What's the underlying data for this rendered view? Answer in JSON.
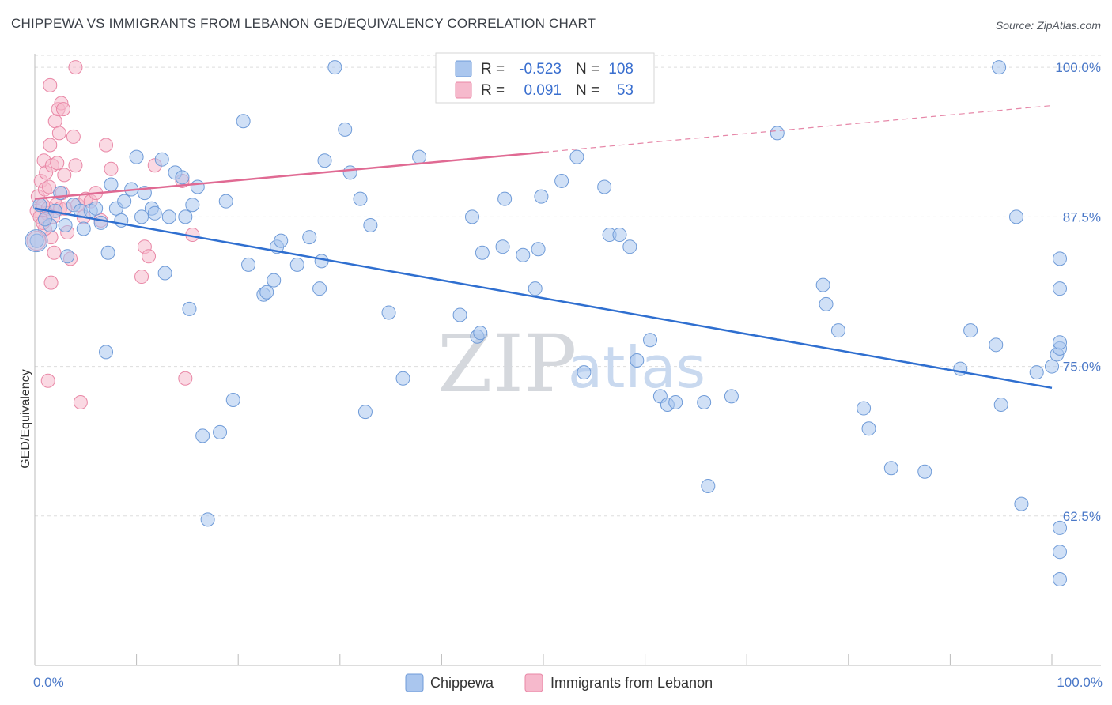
{
  "title": "CHIPPEWA VS IMMIGRANTS FROM LEBANON GED/EQUIVALENCY CORRELATION CHART",
  "source": "Source: ZipAtlas.com",
  "watermark": {
    "zip": "ZIP",
    "atlas": "atlas"
  },
  "colors": {
    "blue_fill": "#aac6ee",
    "blue_stroke": "#6f9bd8",
    "blue_line": "#2f6fd0",
    "pink_fill": "#f6b9cc",
    "pink_stroke": "#e987a6",
    "pink_line": "#e06a93",
    "grid": "#dddddd",
    "axis_text": "#4a78c8"
  },
  "legend": {
    "rows": [
      {
        "r_label": "R =",
        "r_value": "-0.523",
        "n_label": "N =",
        "n_value": "108"
      },
      {
        "r_label": "R =",
        "r_value": "0.091",
        "n_label": "N =",
        "n_value": "53"
      }
    ]
  },
  "chart_data": {
    "type": "scatter",
    "title": "CHIPPEWA VS IMMIGRANTS FROM LEBANON GED/EQUIVALENCY CORRELATION CHART",
    "xlabel": "",
    "ylabel": "GED/Equivalency",
    "xlim": [
      0,
      100
    ],
    "ylim": [
      50,
      101
    ],
    "x_tick_labels": [
      "0.0%",
      "100.0%"
    ],
    "y_ticks": [
      62.5,
      75.0,
      87.5,
      100.0
    ],
    "y_tick_labels": [
      "62.5%",
      "75.0%",
      "87.5%",
      "100.0%"
    ],
    "series": [
      {
        "name": "Chippewa",
        "color": "#aac6ee",
        "trend": {
          "x0": 0,
          "y0": 88.2,
          "x1": 100,
          "y1": 73.2,
          "dashed_from": null
        },
        "points": [
          [
            0.2,
            85.5
          ],
          [
            1.5,
            86.8
          ],
          [
            2.5,
            89.5
          ],
          [
            3.2,
            84.2
          ],
          [
            3.8,
            88.5
          ],
          [
            4.5,
            88.0
          ],
          [
            4.8,
            86.5
          ],
          [
            5.5,
            88.0
          ],
          [
            6.0,
            88.2
          ],
          [
            7.0,
            76.2
          ],
          [
            7.2,
            84.5
          ],
          [
            7.5,
            90.2
          ],
          [
            8.0,
            88.2
          ],
          [
            8.5,
            87.2
          ],
          [
            8.8,
            88.8
          ],
          [
            9.5,
            89.8
          ],
          [
            10.0,
            92.5
          ],
          [
            10.5,
            87.5
          ],
          [
            10.8,
            89.5
          ],
          [
            11.5,
            88.2
          ],
          [
            11.8,
            87.8
          ],
          [
            12.5,
            92.3
          ],
          [
            12.8,
            82.8
          ],
          [
            13.2,
            87.5
          ],
          [
            13.8,
            91.2
          ],
          [
            14.5,
            90.8
          ],
          [
            14.8,
            87.5
          ],
          [
            15.2,
            79.8
          ],
          [
            15.5,
            88.5
          ],
          [
            16.0,
            90.0
          ],
          [
            16.5,
            69.2
          ],
          [
            17.0,
            62.2
          ],
          [
            18.2,
            69.5
          ],
          [
            18.8,
            88.8
          ],
          [
            19.5,
            72.2
          ],
          [
            20.5,
            95.5
          ],
          [
            21.0,
            83.5
          ],
          [
            22.5,
            81.0
          ],
          [
            22.8,
            81.2
          ],
          [
            23.5,
            82.2
          ],
          [
            23.8,
            85.0
          ],
          [
            24.2,
            85.5
          ],
          [
            25.8,
            83.5
          ],
          [
            27.0,
            85.8
          ],
          [
            28.0,
            81.5
          ],
          [
            28.2,
            83.8
          ],
          [
            28.5,
            92.2
          ],
          [
            29.5,
            100.0
          ],
          [
            30.5,
            94.8
          ],
          [
            31.0,
            91.2
          ],
          [
            32.0,
            89.0
          ],
          [
            32.5,
            71.2
          ],
          [
            33.0,
            86.8
          ],
          [
            34.8,
            79.5
          ],
          [
            36.2,
            74.0
          ],
          [
            37.8,
            92.5
          ],
          [
            41.8,
            79.3
          ],
          [
            43.0,
            87.5
          ],
          [
            43.5,
            77.5
          ],
          [
            43.8,
            77.8
          ],
          [
            44.0,
            84.5
          ],
          [
            46.0,
            85.0
          ],
          [
            46.2,
            89.0
          ],
          [
            48.0,
            84.3
          ],
          [
            49.2,
            81.5
          ],
          [
            49.5,
            84.8
          ],
          [
            49.8,
            89.2
          ],
          [
            51.8,
            90.5
          ],
          [
            53.3,
            92.5
          ],
          [
            54.0,
            74.5
          ],
          [
            56.0,
            90.0
          ],
          [
            56.5,
            86.0
          ],
          [
            57.5,
            86.0
          ],
          [
            58.5,
            85.0
          ],
          [
            59.2,
            75.5
          ],
          [
            60.5,
            77.2
          ],
          [
            61.5,
            72.5
          ],
          [
            62.2,
            71.8
          ],
          [
            63.0,
            72.0
          ],
          [
            65.8,
            72.0
          ],
          [
            66.2,
            65.0
          ],
          [
            68.5,
            72.5
          ],
          [
            73.0,
            94.5
          ],
          [
            77.5,
            81.8
          ],
          [
            77.8,
            80.2
          ],
          [
            79.0,
            78.0
          ],
          [
            81.5,
            71.5
          ],
          [
            82.0,
            69.8
          ],
          [
            84.2,
            66.5
          ],
          [
            87.5,
            66.2
          ],
          [
            91.0,
            74.8
          ],
          [
            92.0,
            78.0
          ],
          [
            94.5,
            76.8
          ],
          [
            94.8,
            100.0
          ],
          [
            95.0,
            71.8
          ],
          [
            96.5,
            87.5
          ],
          [
            97.0,
            63.5
          ],
          [
            98.5,
            74.5
          ],
          [
            100.0,
            75.0
          ],
          [
            100.5,
            76.0
          ],
          [
            101.0,
            76.5
          ],
          [
            101.2,
            61.5
          ],
          [
            101.5,
            59.5
          ],
          [
            102.0,
            57.2
          ],
          [
            102.8,
            77.0
          ],
          [
            103.0,
            81.5
          ],
          [
            103.5,
            84.0
          ],
          [
            1.0,
            87.3
          ],
          [
            2.0,
            88.0
          ],
          [
            3.0,
            86.8
          ],
          [
            6.5,
            87.0
          ],
          [
            0.5,
            88.5
          ]
        ]
      },
      {
        "name": "Immigrants from Lebanon",
        "color": "#f6b9cc",
        "trend": {
          "x0": 0,
          "y0": 89.0,
          "x1": 100,
          "y1": 96.8,
          "dashed_from": 50
        },
        "points": [
          [
            0.2,
            88.0
          ],
          [
            0.3,
            89.2
          ],
          [
            0.5,
            87.5
          ],
          [
            0.6,
            90.5
          ],
          [
            0.8,
            88.5
          ],
          [
            0.9,
            92.2
          ],
          [
            1.0,
            89.8
          ],
          [
            1.1,
            91.2
          ],
          [
            1.2,
            87.8
          ],
          [
            1.3,
            88.2
          ],
          [
            1.4,
            90.0
          ],
          [
            1.5,
            93.5
          ],
          [
            1.6,
            85.8
          ],
          [
            1.7,
            91.8
          ],
          [
            1.8,
            87.5
          ],
          [
            1.9,
            84.5
          ],
          [
            2.0,
            95.5
          ],
          [
            2.1,
            88.5
          ],
          [
            2.2,
            92.0
          ],
          [
            2.3,
            96.5
          ],
          [
            2.4,
            94.5
          ],
          [
            2.5,
            88.2
          ],
          [
            2.6,
            97.0
          ],
          [
            2.7,
            89.5
          ],
          [
            2.8,
            96.5
          ],
          [
            2.9,
            91.0
          ],
          [
            3.0,
            88.2
          ],
          [
            3.2,
            86.2
          ],
          [
            3.5,
            84.0
          ],
          [
            3.8,
            94.2
          ],
          [
            4.0,
            91.8
          ],
          [
            4.2,
            88.5
          ],
          [
            4.5,
            72.0
          ],
          [
            4.8,
            87.5
          ],
          [
            5.0,
            89.0
          ],
          [
            5.5,
            88.8
          ],
          [
            6.0,
            89.5
          ],
          [
            6.5,
            87.2
          ],
          [
            7.0,
            93.5
          ],
          [
            7.5,
            91.5
          ],
          [
            10.5,
            82.5
          ],
          [
            10.8,
            85.0
          ],
          [
            11.2,
            84.2
          ],
          [
            11.8,
            91.8
          ],
          [
            14.5,
            90.5
          ],
          [
            14.8,
            74.0
          ],
          [
            15.5,
            86.0
          ],
          [
            1.5,
            98.5
          ],
          [
            4.0,
            100.0
          ],
          [
            1.0,
            86.5
          ],
          [
            0.8,
            87.0
          ],
          [
            1.6,
            82.0
          ],
          [
            1.3,
            73.8
          ]
        ]
      }
    ]
  },
  "bottom_legend": [
    {
      "label": "Chippewa"
    },
    {
      "label": "Immigrants from Lebanon"
    }
  ]
}
